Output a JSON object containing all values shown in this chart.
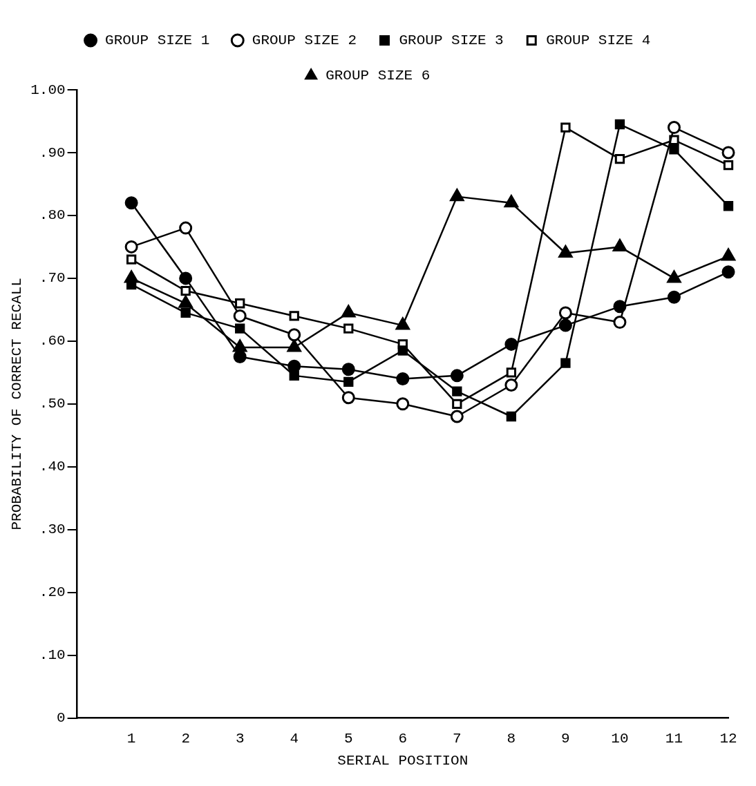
{
  "chart_data": {
    "type": "line",
    "xlabel": "SERIAL POSITION",
    "ylabel": "PROBABILITY OF CORRECT RECALL",
    "x": [
      1,
      2,
      3,
      4,
      5,
      6,
      7,
      8,
      9,
      10,
      11,
      12
    ],
    "xlim": [
      0,
      12
    ],
    "xticks": [
      1,
      2,
      3,
      4,
      5,
      6,
      7,
      8,
      9,
      10,
      11,
      12
    ],
    "ylim": [
      0,
      1
    ],
    "yticks": [
      {
        "value": 0,
        "label": "0"
      },
      {
        "value": 0.1,
        "label": ".10"
      },
      {
        "value": 0.2,
        "label": ".20"
      },
      {
        "value": 0.3,
        "label": ".30"
      },
      {
        "value": 0.4,
        "label": ".40"
      },
      {
        "value": 0.5,
        "label": ".50"
      },
      {
        "value": 0.6,
        "label": ".60"
      },
      {
        "value": 0.7,
        "label": ".70"
      },
      {
        "value": 0.8,
        "label": ".80"
      },
      {
        "value": 0.9,
        "label": ".90"
      },
      {
        "value": 1,
        "label": "1.00"
      }
    ],
    "grid": false,
    "legend": "top",
    "line_style": "solid",
    "series": [
      {
        "name": "GROUP SIZE 1",
        "color": "#000000",
        "marker": "circle",
        "values": [
          0.82,
          0.7,
          0.575,
          0.56,
          0.555,
          0.54,
          0.545,
          0.595,
          0.625,
          0.655,
          0.67,
          0.71
        ]
      },
      {
        "name": "GROUP SIZE 2",
        "color": "#000000",
        "marker": "circle-open",
        "values": [
          0.75,
          0.78,
          0.64,
          0.61,
          0.51,
          0.5,
          0.48,
          0.53,
          0.645,
          0.63,
          0.94,
          0.9
        ]
      },
      {
        "name": "GROUP SIZE 3",
        "color": "#000000",
        "marker": "square",
        "values": [
          0.69,
          0.645,
          0.62,
          0.545,
          0.535,
          0.585,
          0.52,
          0.48,
          0.565,
          0.945,
          0.905,
          0.815
        ]
      },
      {
        "name": "GROUP SIZE 4",
        "color": "#000000",
        "marker": "square-open",
        "values": [
          0.73,
          0.68,
          0.66,
          0.64,
          0.62,
          0.595,
          0.5,
          0.55,
          0.94,
          0.89,
          0.92,
          0.88
        ]
      },
      {
        "name": "GROUP SIZE 6",
        "color": "#000000",
        "marker": "triangle",
        "values": [
          0.7,
          0.66,
          0.59,
          0.59,
          0.645,
          0.625,
          0.83,
          0.82,
          0.74,
          0.75,
          0.7,
          0.735
        ]
      }
    ]
  }
}
